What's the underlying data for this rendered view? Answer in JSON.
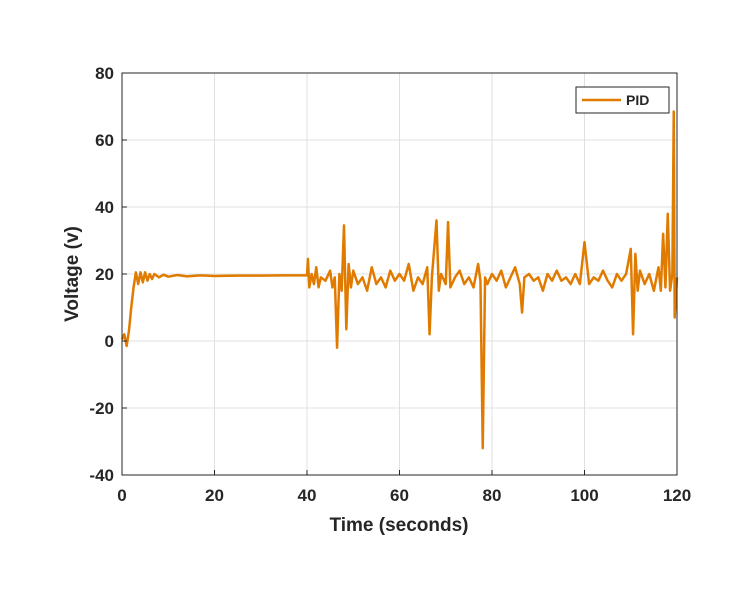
{
  "chart_data": {
    "type": "line",
    "xlabel": "Time (seconds)",
    "ylabel": "Voltage (v)",
    "xlim": [
      0,
      120
    ],
    "xticks": [
      0,
      20,
      40,
      60,
      80,
      100,
      120
    ],
    "ylim": [
      -40,
      80
    ],
    "yticks": [
      -40,
      -20,
      0,
      20,
      40,
      60,
      80
    ],
    "grid": true,
    "legend": "upper right",
    "series": [
      {
        "name": "PID",
        "color": "#e07b00",
        "x": [
          0,
          0.5,
          1,
          1.5,
          2,
          2.5,
          3,
          3.5,
          4,
          4.5,
          5,
          5.5,
          6,
          6.5,
          7,
          8,
          9,
          10,
          12,
          14,
          17,
          20,
          25,
          30,
          35,
          40,
          40.2,
          40.5,
          41,
          41.5,
          42,
          42.5,
          43,
          44,
          45,
          45.5,
          46,
          46.5,
          47,
          47.5,
          48,
          48.5,
          49,
          49.5,
          50,
          51,
          52,
          53,
          54,
          55,
          56,
          57,
          58,
          59,
          60,
          61,
          62,
          63,
          64,
          65,
          66,
          66.5,
          67,
          68,
          68.5,
          69,
          70,
          70.5,
          71,
          72,
          73,
          74,
          75,
          76,
          77,
          77.5,
          78,
          78.5,
          79,
          80,
          81,
          82,
          83,
          84,
          85,
          86,
          86.5,
          87,
          88,
          89,
          90,
          91,
          92,
          93,
          94,
          95,
          96,
          97,
          98,
          99,
          100,
          101,
          102,
          103,
          104,
          105,
          106,
          107,
          108,
          109,
          110,
          110.5,
          111,
          111.5,
          112,
          113,
          114,
          115,
          116,
          116.5,
          117,
          117.5,
          118,
          118.5,
          119,
          119.3,
          119.5,
          120
        ],
        "values": [
          0.5,
          2,
          -1.5,
          3,
          10,
          16,
          20.5,
          17,
          20.5,
          17.5,
          20.5,
          18,
          20,
          18.5,
          20,
          19,
          19.8,
          19.2,
          19.7,
          19.3,
          19.6,
          19.4,
          19.5,
          19.5,
          19.6,
          19.6,
          24.5,
          16,
          20,
          17,
          22,
          16,
          19,
          18,
          21,
          16,
          19,
          -2,
          20,
          15,
          34.5,
          3.5,
          23,
          16,
          21,
          17,
          19,
          15,
          22,
          17,
          19,
          16,
          21,
          18,
          20,
          18,
          23,
          15,
          19,
          17,
          22,
          2,
          19,
          36,
          15,
          20,
          17,
          35.5,
          16,
          19,
          21,
          17,
          19,
          16,
          23,
          18,
          -32,
          19,
          17,
          20,
          18,
          21,
          16,
          19,
          22,
          17,
          8.5,
          19,
          20,
          18,
          19,
          15,
          20,
          18,
          21,
          18,
          19,
          17,
          20,
          17,
          29.5,
          17,
          19,
          18,
          21,
          18,
          16,
          20,
          18,
          20,
          27.5,
          2,
          26,
          15,
          21,
          17,
          20,
          15,
          22,
          15,
          32,
          16,
          38,
          15,
          20,
          68.5,
          7,
          19
        ]
      }
    ]
  }
}
